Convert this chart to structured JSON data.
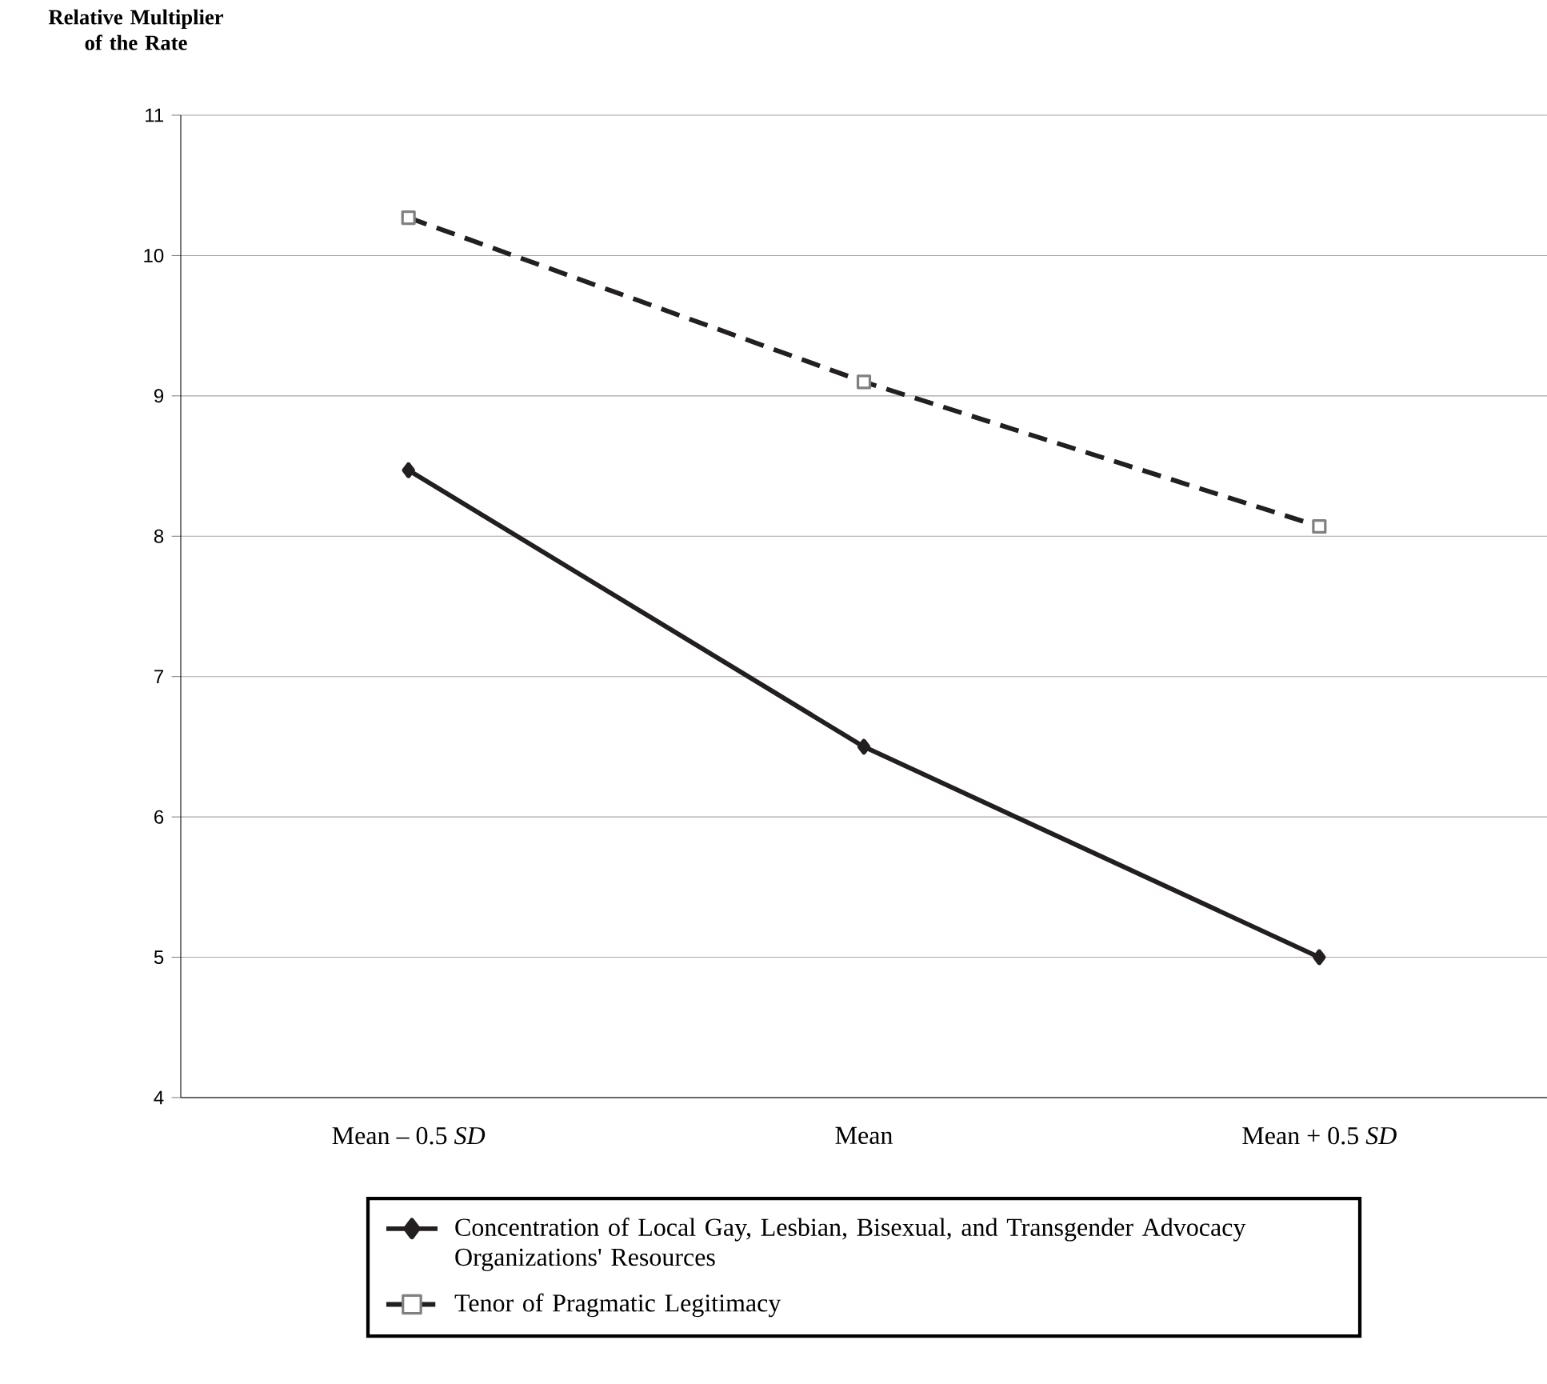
{
  "chart_data": {
    "type": "line",
    "ylabel": "Relative Multiplier of the Rate",
    "categories": [
      "Mean – 0.5 *SD*",
      "Mean",
      "Mean + 0.5 *SD*"
    ],
    "series": [
      {
        "name": "Concentration of Local Gay, Lesbian, Bisexual, and Transgender Advocacy Organizations' Resources",
        "color": "#231f20",
        "values": [
          8.47,
          6.5,
          5.0
        ],
        "marker": "diamond",
        "line_style": "solid"
      },
      {
        "name": "Tenor of Pragmatic Legitimacy",
        "color": "#231f20",
        "values": [
          10.27,
          9.1,
          8.07
        ],
        "marker": "square",
        "line_style": "dashed"
      }
    ],
    "ylim": [
      4,
      11
    ],
    "yticks": [
      4,
      5,
      6,
      7,
      8,
      9,
      10,
      11
    ],
    "grid": "y",
    "legend": "bottom"
  }
}
